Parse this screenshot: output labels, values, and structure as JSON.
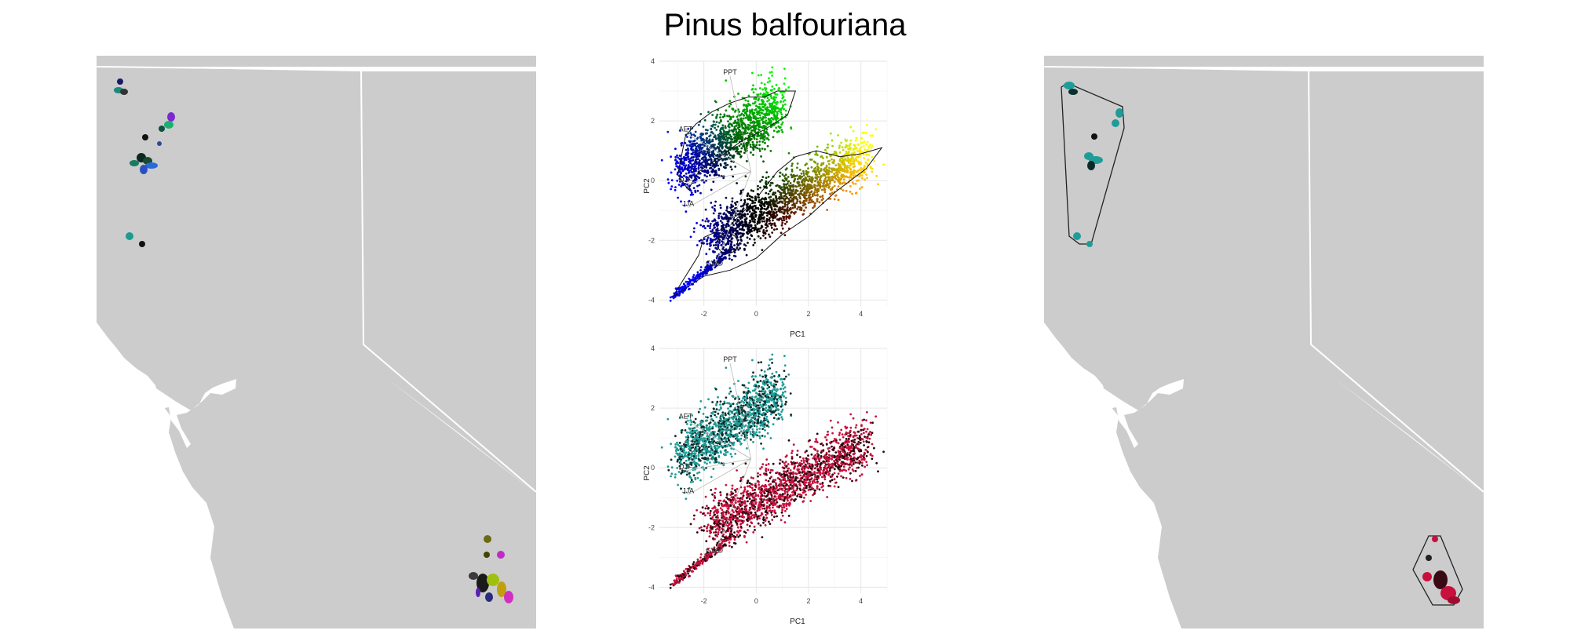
{
  "title": "Pinus balfouriana",
  "colors": {
    "land": "#cccccc",
    "grid": "#ebebeb",
    "north_cluster": "#1f9c97",
    "south_cluster": "#c8103c"
  },
  "chart_data": [
    {
      "type": "scatter",
      "name": "pca-color-rgb",
      "xlabel": "PC1",
      "ylabel": "PC2",
      "xlim": [
        -3.7,
        5.0
      ],
      "ylim": [
        -4.2,
        4.0
      ],
      "xticks": [
        "-2",
        "0",
        "2",
        "4"
      ],
      "yticks": [
        "4",
        "2",
        "0",
        "-2",
        "-4"
      ],
      "grid": true,
      "vectors": [
        {
          "label": "PPT",
          "x": -1.0,
          "y": 3.5
        },
        {
          "label": "AET",
          "x": -2.7,
          "y": 1.6
        },
        {
          "label": "DJF",
          "x": -2.7,
          "y": -0.1
        },
        {
          "label": "JJA",
          "x": -2.6,
          "y": -0.9
        },
        {
          "label": "GWD",
          "x": -1.6,
          "y": -2.9
        }
      ]
    },
    {
      "type": "scatter",
      "name": "pca-cluster",
      "xlabel": "PC1",
      "ylabel": "PC2",
      "xlim": [
        -3.7,
        5.0
      ],
      "ylim": [
        -4.2,
        4.0
      ],
      "xticks": [
        "-2",
        "0",
        "2",
        "4"
      ],
      "yticks": [
        "4",
        "2",
        "0",
        "-2",
        "-4"
      ],
      "grid": true,
      "vectors": [
        {
          "label": "PPT",
          "x": -1.0,
          "y": 3.5
        },
        {
          "label": "AET",
          "x": -2.7,
          "y": 1.6
        },
        {
          "label": "DJF",
          "x": -2.7,
          "y": -0.1
        },
        {
          "label": "JJA",
          "x": -2.6,
          "y": -0.9
        },
        {
          "label": "GWD",
          "x": -1.6,
          "y": -2.9
        }
      ]
    }
  ]
}
